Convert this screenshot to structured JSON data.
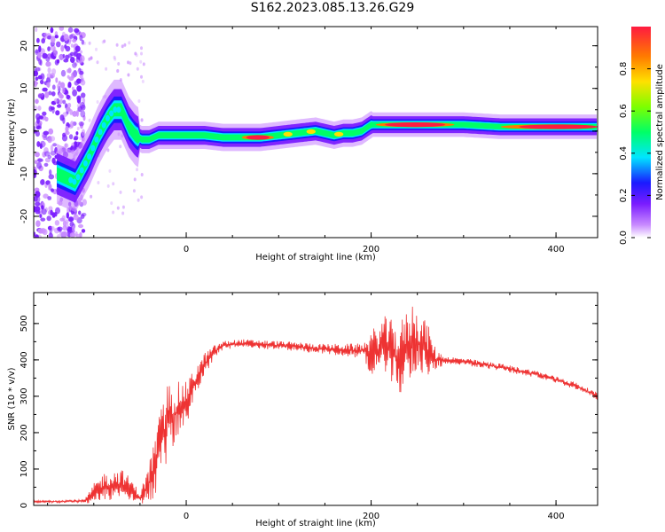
{
  "title": "S162.2023.085.13.26.G29",
  "chart_data": [
    {
      "type": "heatmap",
      "xlabel": "Height of straight line (km)",
      "ylabel": "Frequency (Hz)",
      "xlim": [
        -165,
        445
      ],
      "ylim": [
        -25,
        24.5
      ],
      "xticks": [
        0,
        200,
        400
      ],
      "yticks": [
        -20,
        -10,
        0,
        10,
        20
      ],
      "colorbar": {
        "label": "Normalized spectral amplitude",
        "range": [
          0,
          1
        ],
        "ticks": [
          "0.0",
          "0.2",
          "0.4",
          "0.6",
          "0.8"
        ],
        "colors": [
          "#ffffff",
          "#c98bff",
          "#7a1cff",
          "#1a1aff",
          "#00e5ff",
          "#00ff66",
          "#7dff00",
          "#ffe000",
          "#ff7a00",
          "#ff1a40"
        ]
      },
      "ridge": {
        "height_km": [
          -165,
          -140,
          -120,
          -105,
          -95,
          -85,
          -78,
          -70,
          -62,
          -55,
          -48,
          -40,
          -30,
          -20,
          0,
          20,
          40,
          60,
          80,
          100,
          120,
          140,
          150,
          160,
          170,
          180,
          190,
          200,
          220,
          260,
          300,
          340,
          380,
          420,
          445
        ],
        "frequency_hz": [
          -6,
          -10,
          -12,
          -6,
          -1,
          3,
          5,
          5,
          1,
          -1,
          -2,
          -2,
          -1,
          -1,
          -1,
          -1,
          -1.5,
          -1.5,
          -1.5,
          -1,
          -0.5,
          0,
          -0.5,
          -1,
          -0.5,
          -0.5,
          0,
          1.5,
          1.5,
          1.5,
          1.5,
          1,
          1,
          1,
          1
        ]
      },
      "noise_region_km": [
        -165,
        -125
      ]
    },
    {
      "type": "line",
      "xlabel": "Height of straight line (km)",
      "ylabel": "SNR (10 * v/v)",
      "xlim": [
        -165,
        445
      ],
      "ylim": [
        0,
        585
      ],
      "xticks": [
        0,
        200,
        400
      ],
      "yticks": [
        0,
        100,
        200,
        300,
        400,
        500
      ],
      "color": "#ee3333",
      "envelope": {
        "height_km": [
          -165,
          -110,
          -100,
          -90,
          -80,
          -70,
          -60,
          -50,
          -40,
          -30,
          -20,
          -10,
          0,
          10,
          20,
          30,
          40,
          60,
          100,
          150,
          190,
          200,
          215,
          230,
          245,
          260,
          270,
          280,
          300,
          340,
          380,
          420,
          445
        ],
        "snr_mean": [
          10,
          12,
          30,
          50,
          55,
          60,
          45,
          20,
          60,
          140,
          230,
          260,
          280,
          340,
          390,
          420,
          440,
          445,
          440,
          430,
          425,
          420,
          440,
          400,
          460,
          430,
          400,
          400,
          395,
          380,
          360,
          330,
          300
        ],
        "snr_spread": [
          3,
          4,
          30,
          40,
          40,
          40,
          30,
          15,
          60,
          100,
          110,
          80,
          60,
          40,
          30,
          20,
          12,
          12,
          12,
          14,
          20,
          60,
          80,
          100,
          100,
          80,
          30,
          10,
          10,
          10,
          10,
          10,
          10
        ]
      }
    }
  ]
}
